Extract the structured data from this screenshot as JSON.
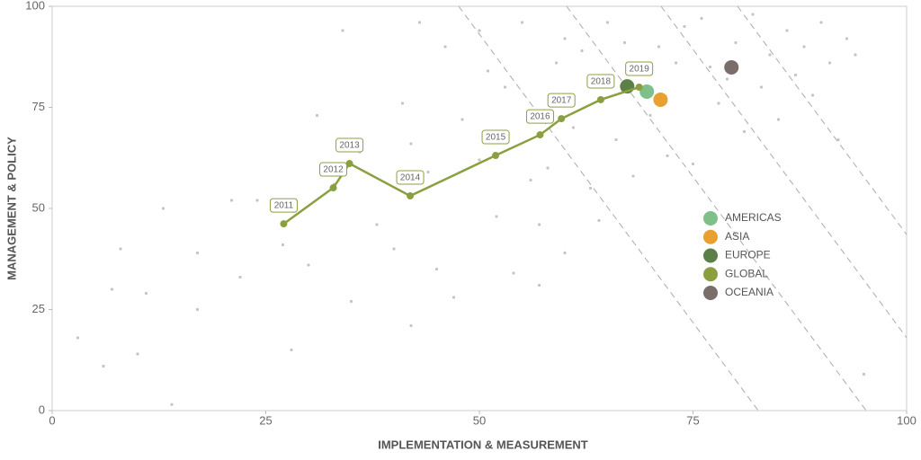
{
  "chart_data": {
    "type": "scatter",
    "xlabel": "IMPLEMENTATION & MEASUREMENT",
    "ylabel": "MANAGEMENT & POLICY",
    "xlim": [
      0,
      100
    ],
    "ylim": [
      0,
      100
    ],
    "xticks": [
      0,
      25,
      50,
      75,
      100
    ],
    "yticks": [
      0,
      25,
      50,
      75,
      100
    ],
    "grid": false,
    "legend": "right",
    "series": [
      {
        "color": "#c4c4c4",
        "x": [
          3,
          6,
          7,
          8,
          10,
          11,
          13,
          14,
          17,
          17,
          21,
          22,
          24,
          27,
          28,
          30,
          31,
          33,
          34,
          35,
          36,
          38,
          40,
          41,
          42,
          42,
          43,
          44,
          45,
          46,
          47,
          48,
          50,
          50,
          51,
          52,
          53,
          54,
          55,
          56,
          57,
          57,
          58,
          59,
          60,
          60,
          61,
          62,
          63,
          64,
          65,
          66,
          67,
          68,
          70,
          71,
          72,
          73,
          74,
          75,
          76,
          77,
          78,
          79,
          80,
          81,
          82,
          83,
          84,
          85,
          86,
          87,
          88,
          89,
          90,
          91,
          92,
          93,
          94,
          95
        ],
        "values": [
          18,
          11,
          30,
          40,
          14,
          29,
          50,
          1.5,
          25,
          39,
          52,
          33,
          52,
          41,
          15,
          36,
          73,
          56,
          94,
          27,
          64,
          46,
          40,
          76,
          66,
          21,
          96,
          59,
          35,
          90,
          28,
          72,
          94,
          62,
          84,
          48,
          80,
          34,
          96,
          57,
          31,
          46,
          60,
          86,
          39,
          92,
          70,
          89,
          55,
          47,
          96,
          67,
          91,
          58,
          73,
          90,
          63,
          86,
          95,
          61,
          97,
          85,
          76,
          82,
          91,
          69,
          98,
          80,
          88,
          72,
          94,
          83,
          90,
          78,
          96,
          86,
          67,
          92,
          88,
          9
        ]
      },
      {
        "name": "AMERICAS",
        "color": "#7fc08a",
        "x": [
          69.6
        ],
        "values": [
          78.9
        ]
      },
      {
        "name": "ASIA",
        "color": "#e8a030",
        "x": [
          71.2
        ],
        "values": [
          76.9
        ]
      },
      {
        "name": "EUROPE",
        "color": "#5a8048",
        "x": [
          67.3
        ],
        "values": [
          80.2
        ]
      },
      {
        "name": "GLOBAL",
        "color": "#8aa040",
        "line": true,
        "x": [
          27.1,
          32.9,
          34.8,
          41.9,
          51.9,
          57.1,
          59.6,
          64.2,
          68.7
        ],
        "values": [
          46.2,
          55.1,
          61.1,
          53.1,
          63.1,
          68.2,
          72.2,
          76.9,
          80.0
        ],
        "point_labels": [
          "2011",
          "2012",
          "2013",
          "2014",
          "2015",
          "2016",
          "2017",
          "2018",
          "2019"
        ]
      },
      {
        "name": "OCEANIA",
        "color": "#7a6e6a",
        "x": [
          79.5
        ],
        "values": [
          84.9
        ]
      }
    ]
  }
}
